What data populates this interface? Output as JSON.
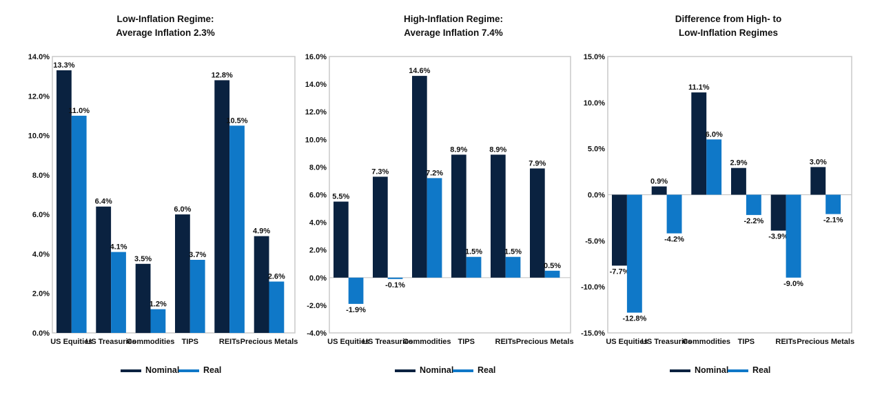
{
  "colors": {
    "nominal": "#0a2240",
    "real": "#0f78c8",
    "frame": "#c8c8c8"
  },
  "chart_data": [
    {
      "type": "bar",
      "title": [
        "Low-Inflation Regime:",
        "Average Inflation 2.3%"
      ],
      "categories": [
        "US Equities",
        "US Treasuries",
        "Commodities",
        "TIPS",
        "REITs",
        "Precious Metals"
      ],
      "series": [
        {
          "name": "Nominal",
          "values": [
            13.3,
            6.4,
            3.5,
            6.0,
            12.8,
            4.9
          ]
        },
        {
          "name": "Real",
          "values": [
            11.0,
            4.1,
            1.2,
            3.7,
            10.5,
            2.6
          ]
        }
      ],
      "ylim": [
        0,
        14
      ],
      "yticks": [
        "0.0%",
        "2.0%",
        "4.0%",
        "6.0%",
        "8.0%",
        "10.0%",
        "12.0%",
        "14.0%"
      ],
      "ytick_values": [
        0,
        2,
        4,
        6,
        8,
        10,
        12,
        14
      ],
      "value_labels": [
        [
          "13.3%",
          "6.4%",
          "3.5%",
          "6.0%",
          "12.8%",
          "4.9%"
        ],
        [
          "11.0%",
          "4.1%",
          "1.2%",
          "3.7%",
          "10.5%",
          "2.6%"
        ]
      ],
      "legend_position": "bottom"
    },
    {
      "type": "bar",
      "title": [
        "High-Inflation Regime:",
        "Average Inflation 7.4%"
      ],
      "categories": [
        "US Equities",
        "US Treasuries",
        "Commodities",
        "TIPS",
        "REITs",
        "Precious Metals"
      ],
      "series": [
        {
          "name": "Nominal",
          "values": [
            5.5,
            7.3,
            14.6,
            8.9,
            8.9,
            7.9
          ]
        },
        {
          "name": "Real",
          "values": [
            -1.9,
            -0.1,
            7.2,
            1.5,
            1.5,
            0.5
          ]
        }
      ],
      "ylim": [
        -4,
        16
      ],
      "yticks": [
        "-4.0%",
        "-2.0%",
        "0.0%",
        "2.0%",
        "4.0%",
        "6.0%",
        "8.0%",
        "10.0%",
        "12.0%",
        "14.0%",
        "16.0%"
      ],
      "ytick_values": [
        -4,
        -2,
        0,
        2,
        4,
        6,
        8,
        10,
        12,
        14,
        16
      ],
      "value_labels": [
        [
          "5.5%",
          "7.3%",
          "14.6%",
          "8.9%",
          "8.9%",
          "7.9%"
        ],
        [
          "-1.9%",
          "-0.1%",
          "7.2%",
          "1.5%",
          "1.5%",
          "0.5%"
        ]
      ],
      "legend_position": "bottom"
    },
    {
      "type": "bar",
      "title": [
        "Difference from High- to",
        "Low-Inflation Regimes"
      ],
      "categories": [
        "US Equities",
        "US Treasuries",
        "Commodities",
        "TIPS",
        "REITs",
        "Precious Metals"
      ],
      "series": [
        {
          "name": "Nominal",
          "values": [
            -7.7,
            0.9,
            11.1,
            2.9,
            -3.9,
            3.0
          ]
        },
        {
          "name": "Real",
          "values": [
            -12.8,
            -4.2,
            6.0,
            -2.2,
            -9.0,
            -2.1
          ]
        }
      ],
      "ylim": [
        -15,
        15
      ],
      "yticks": [
        "-15.0%",
        "-10.0%",
        "-5.0%",
        "0.0%",
        "5.0%",
        "10.0%",
        "15.0%"
      ],
      "ytick_values": [
        -15,
        -10,
        -5,
        0,
        5,
        10,
        15
      ],
      "value_labels": [
        [
          "-7.7%",
          "0.9%",
          "11.1%",
          "2.9%",
          "-3.9%",
          "3.0%"
        ],
        [
          "-12.8%",
          "-4.2%",
          "6.0%",
          "-2.2%",
          "-9.0%",
          "-2.1%"
        ]
      ],
      "legend_position": "bottom"
    }
  ]
}
